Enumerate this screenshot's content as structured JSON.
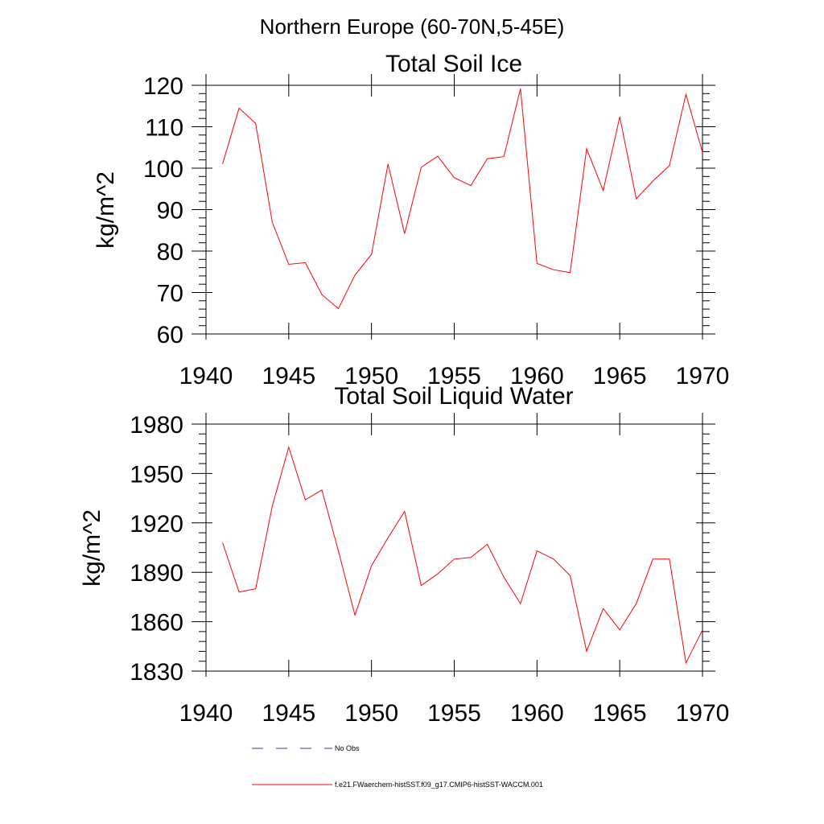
{
  "figure": {
    "title": "Northern Europe (60-70N,5-45E)",
    "legend": [
      {
        "label": "No Obs",
        "color": "#3a3a8c",
        "dash": "dashed"
      },
      {
        "label": "f.e21.FWaerchem-histSST.f09_g17.CMIP6-histSST-WACCM.001",
        "color": "#ff0000",
        "dash": "solid"
      }
    ]
  },
  "chart_data": [
    {
      "type": "line",
      "title": "Total Soil Ice",
      "xlabel": "",
      "ylabel": "kg/m^2",
      "xlim": [
        1940,
        1970
      ],
      "ylim": [
        60,
        120
      ],
      "xticks": [
        1940,
        1945,
        1950,
        1955,
        1960,
        1965,
        1970
      ],
      "yticks": [
        60,
        70,
        80,
        90,
        100,
        110,
        120
      ],
      "grid": false,
      "series": [
        {
          "name": "f.e21.FWaerchem-histSST.f09_g17.CMIP6-histSST-WACCM.001",
          "color": "#ff0000",
          "x": [
            1941,
            1942,
            1943,
            1944,
            1945,
            1946,
            1947,
            1948,
            1949,
            1950,
            1951,
            1952,
            1953,
            1954,
            1955,
            1956,
            1957,
            1958,
            1959,
            1960,
            1961,
            1962,
            1963,
            1964,
            1965,
            1966,
            1967,
            1968,
            1969,
            1970
          ],
          "values": [
            101.0,
            114.5,
            110.8,
            87.0,
            76.8,
            77.2,
            69.5,
            66.1,
            74.2,
            79.2,
            101.0,
            84.2,
            100.2,
            102.9,
            97.7,
            95.8,
            102.3,
            102.8,
            119.2,
            77.0,
            75.5,
            74.8,
            104.7,
            94.6,
            112.4,
            92.6,
            96.9,
            100.6,
            117.8,
            103.8
          ]
        }
      ]
    },
    {
      "type": "line",
      "title": "Total Soil Liquid Water",
      "xlabel": "",
      "ylabel": "kg/m^2",
      "xlim": [
        1940,
        1970
      ],
      "ylim": [
        1830,
        1980
      ],
      "xticks": [
        1940,
        1945,
        1950,
        1955,
        1960,
        1965,
        1970
      ],
      "yticks": [
        1830,
        1860,
        1890,
        1920,
        1950,
        1980
      ],
      "grid": false,
      "series": [
        {
          "name": "f.e21.FWaerchem-histSST.f09_g17.CMIP6-histSST-WACCM.001",
          "color": "#ff0000",
          "x": [
            1941,
            1942,
            1943,
            1944,
            1945,
            1946,
            1947,
            1948,
            1949,
            1950,
            1951,
            1952,
            1953,
            1954,
            1955,
            1956,
            1957,
            1958,
            1959,
            1960,
            1961,
            1962,
            1963,
            1964,
            1965,
            1966,
            1967,
            1968,
            1969,
            1970
          ],
          "values": [
            1908,
            1878,
            1880,
            1930,
            1966,
            1934,
            1940,
            1903,
            1864,
            1894,
            1911,
            1927,
            1882,
            1889,
            1898,
            1899,
            1907,
            1887,
            1871,
            1903,
            1898,
            1888,
            1842,
            1868,
            1855,
            1871,
            1898,
            1898,
            1835,
            1855
          ]
        }
      ]
    }
  ]
}
